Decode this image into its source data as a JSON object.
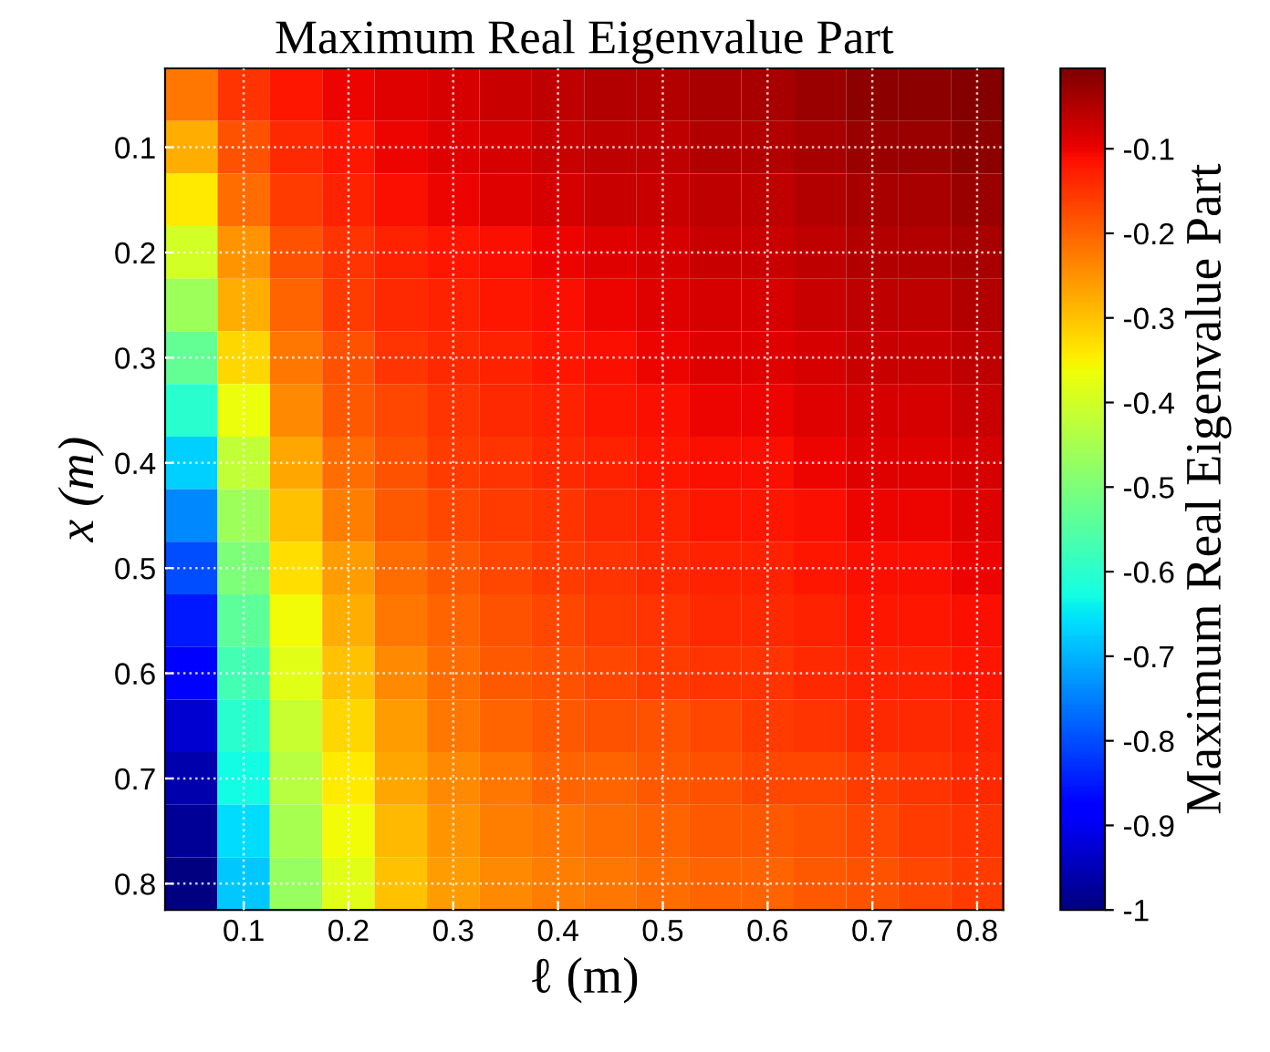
{
  "chart_data": {
    "type": "heatmap",
    "title": "Maximum Real Eigenvalue Part",
    "xlabel": "ℓ (m)",
    "ylabel": "x (m)",
    "clabel": "Maximum Real Eigenvalue Part",
    "categories": [
      null,
      "0.1",
      null,
      "0.2",
      null,
      "0.3",
      null,
      "0.4",
      null,
      "0.5",
      null,
      "0.6",
      null,
      "0.7",
      null,
      "0.8"
    ],
    "y_categories": [
      null,
      "0.1",
      null,
      "0.2",
      null,
      "0.3",
      null,
      "0.4",
      null,
      "0.5",
      null,
      "0.6",
      null,
      "0.7",
      null,
      "0.8"
    ],
    "cells": [
      [
        -0.22,
        -0.15,
        -0.12,
        -0.1,
        -0.09,
        -0.08,
        -0.07,
        -0.06,
        -0.05,
        -0.05,
        -0.04,
        -0.04,
        -0.03,
        -0.02,
        -0.02,
        -0.01
      ],
      [
        -0.28,
        -0.18,
        -0.14,
        -0.12,
        -0.1,
        -0.09,
        -0.08,
        -0.07,
        -0.06,
        -0.06,
        -0.05,
        -0.05,
        -0.04,
        -0.03,
        -0.03,
        -0.02
      ],
      [
        -0.34,
        -0.21,
        -0.16,
        -0.13,
        -0.11,
        -0.1,
        -0.09,
        -0.08,
        -0.07,
        -0.07,
        -0.06,
        -0.06,
        -0.05,
        -0.04,
        -0.04,
        -0.03
      ],
      [
        -0.4,
        -0.25,
        -0.18,
        -0.15,
        -0.13,
        -0.12,
        -0.11,
        -0.1,
        -0.09,
        -0.08,
        -0.07,
        -0.07,
        -0.06,
        -0.05,
        -0.05,
        -0.04
      ],
      [
        -0.46,
        -0.28,
        -0.2,
        -0.16,
        -0.14,
        -0.13,
        -0.12,
        -0.11,
        -0.1,
        -0.09,
        -0.08,
        -0.08,
        -0.07,
        -0.06,
        -0.06,
        -0.05
      ],
      [
        -0.53,
        -0.32,
        -0.22,
        -0.18,
        -0.15,
        -0.14,
        -0.13,
        -0.12,
        -0.11,
        -0.1,
        -0.09,
        -0.09,
        -0.08,
        -0.07,
        -0.07,
        -0.06
      ],
      [
        -0.6,
        -0.37,
        -0.24,
        -0.19,
        -0.17,
        -0.15,
        -0.14,
        -0.13,
        -0.12,
        -0.11,
        -0.1,
        -0.1,
        -0.09,
        -0.08,
        -0.08,
        -0.07
      ],
      [
        -0.67,
        -0.42,
        -0.27,
        -0.21,
        -0.18,
        -0.16,
        -0.15,
        -0.14,
        -0.13,
        -0.12,
        -0.11,
        -0.11,
        -0.1,
        -0.09,
        -0.09,
        -0.08
      ],
      [
        -0.74,
        -0.46,
        -0.3,
        -0.23,
        -0.19,
        -0.17,
        -0.16,
        -0.15,
        -0.14,
        -0.13,
        -0.12,
        -0.12,
        -0.11,
        -0.1,
        -0.1,
        -0.09
      ],
      [
        -0.8,
        -0.5,
        -0.33,
        -0.26,
        -0.21,
        -0.19,
        -0.17,
        -0.16,
        -0.15,
        -0.14,
        -0.13,
        -0.13,
        -0.12,
        -0.11,
        -0.11,
        -0.1
      ],
      [
        -0.85,
        -0.54,
        -0.36,
        -0.28,
        -0.22,
        -0.2,
        -0.18,
        -0.17,
        -0.16,
        -0.15,
        -0.14,
        -0.14,
        -0.13,
        -0.12,
        -0.12,
        -0.11
      ],
      [
        -0.89,
        -0.57,
        -0.38,
        -0.3,
        -0.24,
        -0.21,
        -0.19,
        -0.18,
        -0.17,
        -0.16,
        -0.15,
        -0.15,
        -0.14,
        -0.13,
        -0.13,
        -0.12
      ],
      [
        -0.93,
        -0.6,
        -0.41,
        -0.32,
        -0.26,
        -0.22,
        -0.2,
        -0.19,
        -0.18,
        -0.18,
        -0.17,
        -0.16,
        -0.15,
        -0.14,
        -0.14,
        -0.13
      ],
      [
        -0.96,
        -0.63,
        -0.43,
        -0.34,
        -0.27,
        -0.24,
        -0.22,
        -0.2,
        -0.2,
        -0.19,
        -0.18,
        -0.17,
        -0.17,
        -0.16,
        -0.15,
        -0.14
      ],
      [
        -0.98,
        -0.66,
        -0.45,
        -0.36,
        -0.29,
        -0.25,
        -0.23,
        -0.22,
        -0.21,
        -0.2,
        -0.19,
        -0.19,
        -0.18,
        -0.17,
        -0.16,
        -0.15
      ],
      [
        -1,
        -0.68,
        -0.47,
        -0.38,
        -0.3,
        -0.26,
        -0.24,
        -0.23,
        -0.22,
        -0.21,
        -0.2,
        -0.2,
        -0.19,
        -0.18,
        -0.17,
        -0.16
      ]
    ],
    "clim": [
      -1,
      -0.005
    ],
    "cticks": [
      -1,
      {
        "value": -0.9,
        "label": "-0.9"
      },
      {
        "value": -0.8,
        "label": "-0.8"
      },
      {
        "value": -0.7,
        "label": "-0.7"
      },
      {
        "value": -0.6,
        "label": "-0.6"
      },
      {
        "value": -0.5,
        "label": "-0.5"
      },
      {
        "value": -0.4,
        "label": "-0.4"
      },
      {
        "value": -0.3,
        "label": "-0.3"
      },
      {
        "value": -0.2,
        "label": "-0.2"
      },
      {
        "value": -0.1,
        "label": "-0.1"
      }
    ],
    "grid": true
  }
}
